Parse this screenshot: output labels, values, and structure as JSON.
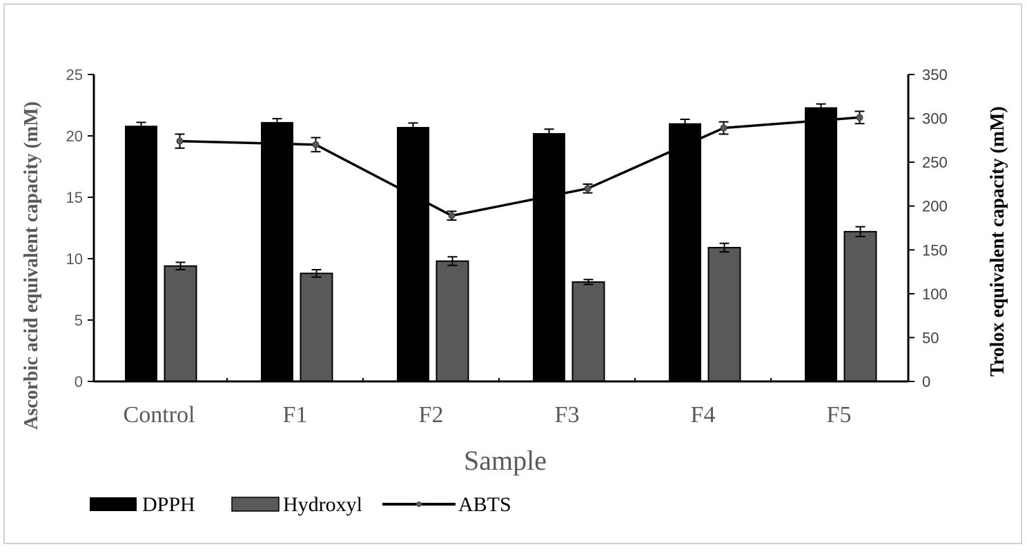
{
  "chart_data": {
    "type": "bar",
    "categories": [
      "Control",
      "F1",
      "F2",
      "F3",
      "F4",
      "F5"
    ],
    "series": [
      {
        "name": "DPPH",
        "kind": "bar",
        "axis": "left",
        "color": "#000000",
        "values": [
          20.8,
          21.1,
          20.7,
          20.2,
          21.0,
          22.3
        ],
        "errors": [
          0.3,
          0.3,
          0.35,
          0.35,
          0.35,
          0.3
        ]
      },
      {
        "name": "Hydroxyl",
        "kind": "bar",
        "axis": "left",
        "color": "#595959",
        "values": [
          9.4,
          8.8,
          9.8,
          8.1,
          10.9,
          12.2
        ],
        "errors": [
          0.3,
          0.3,
          0.35,
          0.2,
          0.35,
          0.4
        ]
      },
      {
        "name": "ABTS",
        "kind": "line",
        "axis": "right",
        "color": "#000000",
        "marker_color": "#595959",
        "values": [
          274,
          270,
          189,
          220,
          289,
          301
        ],
        "errors": [
          8,
          8,
          5,
          5,
          7,
          7
        ]
      }
    ],
    "title": "",
    "xlabel": "Sample",
    "ylabel_left": "Ascorbic acid equivalent capacity (mM)",
    "ylabel_right": "Trolox equivalent capacity (mM)",
    "ylim_left": [
      0,
      25
    ],
    "yticks_left": [
      "0",
      "5",
      "10",
      "15",
      "20",
      "25"
    ],
    "ylim_right": [
      0,
      350
    ],
    "yticks_right": [
      "0",
      "50",
      "100",
      "150",
      "200",
      "250",
      "300",
      "350"
    ],
    "grid": false,
    "legend_position": "bottom-left"
  }
}
